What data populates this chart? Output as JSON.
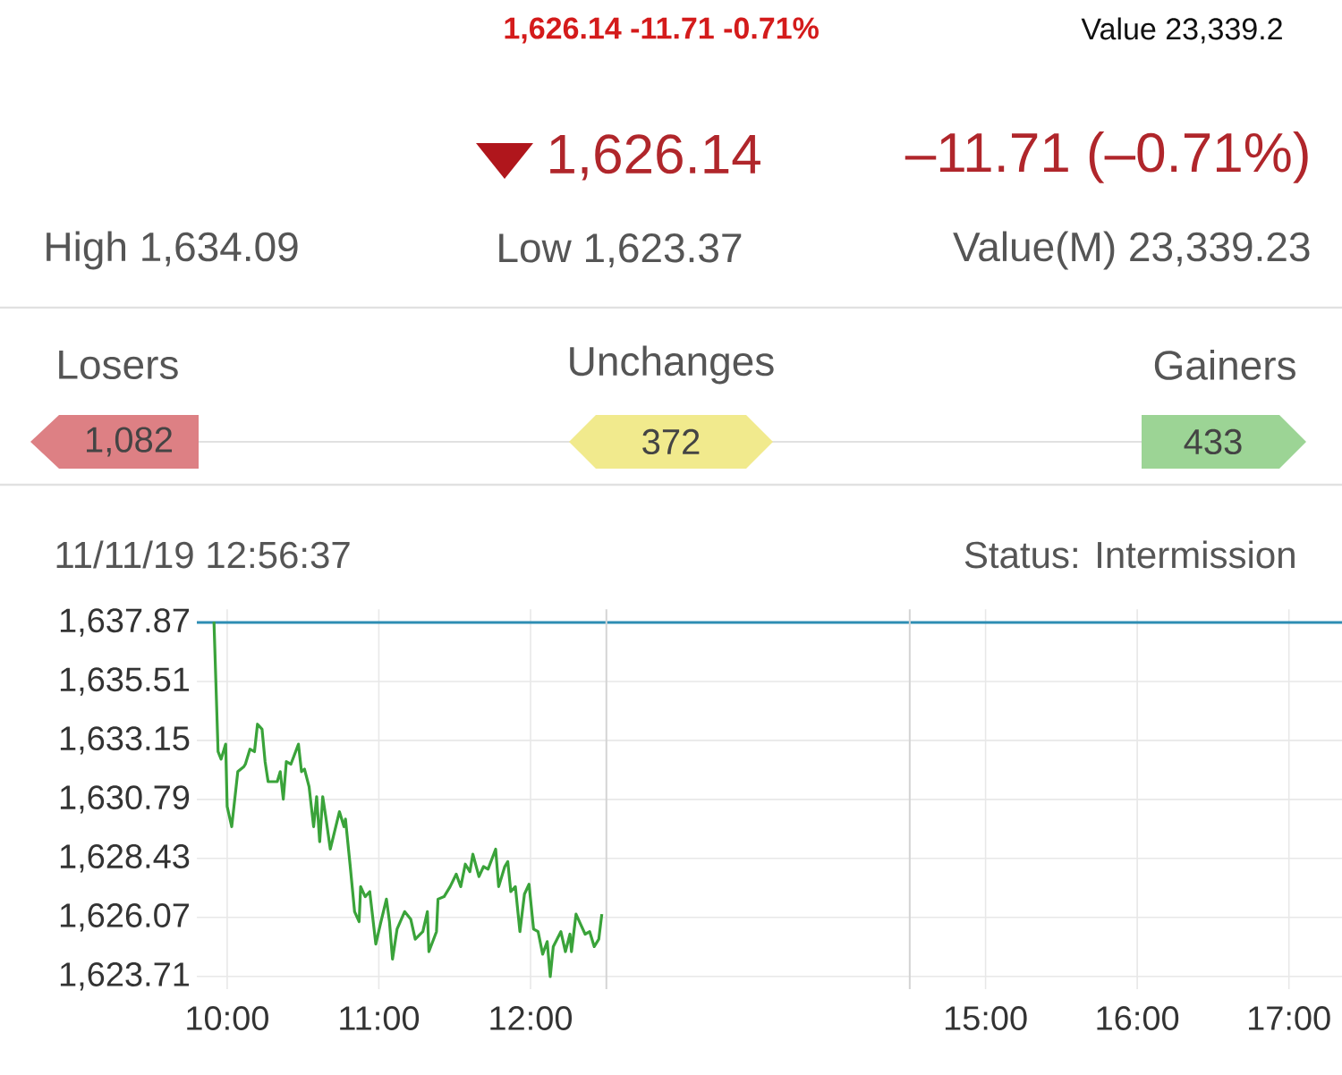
{
  "chart_data": {
    "type": "line",
    "annotations": [
      "1,626.14  -11.71  -0.71%",
      "Value  23,339.2",
      "1,626.14",
      "–11.71 (–0.71%)",
      "High 1,634.09",
      "Low 1,623.37",
      "Value(M) 23,339.23",
      "Losers",
      "Unchanges",
      "Gainers",
      "1,082",
      "372",
      "433",
      "11/11/19 12:56:37",
      "Status: Intermission"
    ],
    "x": [
      9.913,
      9.94,
      9.96,
      9.99,
      10.0,
      10.03,
      10.07,
      10.11,
      10.12,
      10.15,
      10.18,
      10.2,
      10.23,
      10.25,
      10.27,
      10.3,
      10.33,
      10.35,
      10.37,
      10.39,
      10.42,
      10.47,
      10.49,
      10.51,
      10.54,
      10.57,
      10.59,
      10.61,
      10.63,
      10.65,
      10.68,
      10.74,
      10.77,
      10.78,
      10.81,
      10.84,
      10.87,
      10.88,
      10.91,
      10.94,
      10.98,
      11.01,
      11.05,
      11.07,
      11.09,
      11.12,
      11.17,
      11.21,
      11.24,
      11.29,
      11.32,
      11.33,
      11.38,
      11.39,
      11.43,
      11.47,
      11.51,
      11.54,
      11.57,
      11.6,
      11.62,
      11.66,
      11.69,
      11.72,
      11.77,
      11.79,
      11.83,
      11.85,
      11.87,
      11.9,
      11.93,
      11.96,
      11.99,
      12.02,
      12.05,
      12.08,
      12.11,
      12.13,
      12.15,
      12.2,
      12.23,
      12.26,
      12.27,
      12.3,
      12.33,
      12.36,
      12.39,
      12.42,
      12.45,
      12.47
    ],
    "series": [
      {
        "color": "#3aa33a",
        "values": [
          1637.9,
          1632.7,
          1632.4,
          1633.0,
          1630.5,
          1629.7,
          1631.9,
          1632.1,
          1632.2,
          1632.8,
          1632.7,
          1633.8,
          1633.6,
          1632.3,
          1631.5,
          1631.5,
          1631.5,
          1631.9,
          1630.8,
          1632.3,
          1632.2,
          1633.0,
          1631.9,
          1632.0,
          1631.3,
          1629.7,
          1630.9,
          1629.1,
          1630.9,
          1630.1,
          1628.8,
          1630.3,
          1629.7,
          1630.0,
          1628.2,
          1626.3,
          1625.9,
          1627.3,
          1626.9,
          1627.1,
          1625.0,
          1625.8,
          1626.8,
          1625.9,
          1624.4,
          1625.6,
          1626.3,
          1626.0,
          1625.2,
          1625.5,
          1626.3,
          1624.7,
          1625.5,
          1626.8,
          1626.9,
          1627.3,
          1627.8,
          1627.3,
          1628.2,
          1627.9,
          1628.6,
          1627.7,
          1628.1,
          1628.0,
          1628.8,
          1627.3,
          1628.1,
          1628.3,
          1627.1,
          1627.3,
          1625.5,
          1627.0,
          1627.4,
          1625.6,
          1625.5,
          1624.6,
          1625.1,
          1623.7,
          1624.9,
          1625.5,
          1624.7,
          1625.4,
          1624.7,
          1626.2,
          1625.8,
          1625.4,
          1625.5,
          1624.9,
          1625.2,
          1626.2
        ]
      }
    ],
    "xlim": [
      9.8,
      17.35
    ],
    "ylim": [
      1623.2,
      1638.4
    ],
    "xticks": [
      {
        "value": 10,
        "label": "10:00"
      },
      {
        "value": 11,
        "label": "11:00"
      },
      {
        "value": 12,
        "label": "12:00"
      },
      {
        "value": 15,
        "label": "15:00"
      },
      {
        "value": 16,
        "label": "16:00"
      },
      {
        "value": 17,
        "label": "17:00"
      }
    ],
    "yticks": [
      {
        "value": 1623.71,
        "label": "1,623.71"
      },
      {
        "value": 1626.07,
        "label": "1,626.07"
      },
      {
        "value": 1628.43,
        "label": "1,628.43"
      },
      {
        "value": 1630.79,
        "label": "1,630.79"
      },
      {
        "value": 1633.15,
        "label": "1,633.15"
      },
      {
        "value": 1635.51,
        "label": "1,635.51"
      },
      {
        "value": 1637.87,
        "label": "1,637.87"
      }
    ],
    "ref_lines": [
      {
        "axis": "y",
        "value": 1637.87,
        "color": "#2e8db3"
      },
      {
        "axis": "x",
        "value": 12.5,
        "color": "#d4d4d4"
      },
      {
        "axis": "x",
        "value": 14.5,
        "color": "#d4d4d4"
      }
    ],
    "grid": true,
    "marker": "none",
    "line_style": "solid"
  }
}
